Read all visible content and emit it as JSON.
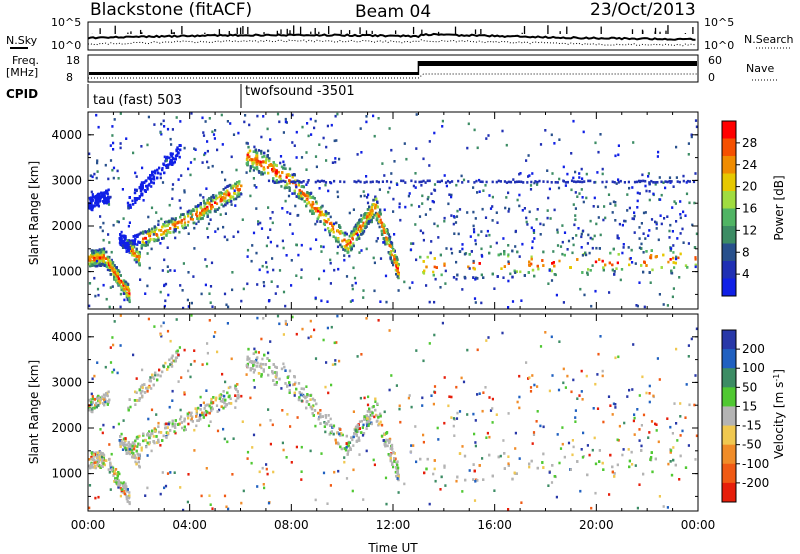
{
  "header": {
    "station": "Blackstone (fitACF)",
    "beam": "Beam 04",
    "date": "23/Oct/2013"
  },
  "status_panels": {
    "nsky_label": "N.Sky",
    "nsearch_label": "N.Search",
    "noise_ticks": [
      "10^5",
      "10^0"
    ],
    "freq_label": "Freq.",
    "freq_unit": "[MHz]",
    "freq_ticks": [
      "18",
      "8"
    ],
    "nave_label": "Nave",
    "nave_ticks": [
      "60",
      "0"
    ],
    "cpid_label": "CPID",
    "cpid_segments": [
      {
        "name": "tau (fast) 503",
        "start_hour": 0,
        "end_hour": 6
      },
      {
        "name": "twofsound -3501",
        "start_hour": 6,
        "end_hour": 24
      }
    ],
    "freq_step_hour": 13
  },
  "chart_data": [
    {
      "type": "heatmap",
      "name": "power",
      "ylabel": "Slant Range [km]",
      "ylim": [
        180,
        4500
      ],
      "yticks": [
        1000,
        2000,
        3000,
        4000
      ],
      "xlim": [
        0,
        24
      ],
      "colorbar": {
        "label": "Power [dB]",
        "ticks": [
          "28",
          "24",
          "20",
          "16",
          "12",
          "8",
          "4"
        ],
        "colors": [
          "#ff0000",
          "#f55000",
          "#f08c00",
          "#e6c800",
          "#a0dc40",
          "#50b464",
          "#3c8c64",
          "#28508c",
          "#2030b4",
          "#1020e6"
        ]
      }
    },
    {
      "type": "heatmap",
      "name": "velocity",
      "ylabel": "Slant Range [km]",
      "ylim": [
        180,
        4500
      ],
      "yticks": [
        1000,
        2000,
        3000,
        4000
      ],
      "xlim": [
        0,
        24
      ],
      "xticks": [
        "00:00",
        "04:00",
        "08:00",
        "12:00",
        "16:00",
        "20:00",
        "00:00"
      ],
      "xlabel": "Time UT",
      "colorbar": {
        "label_main": "Velocity [m s",
        "label_sup": "-1",
        "label_close": "]",
        "ticks": [
          "200",
          "100",
          "50",
          "15",
          "-15",
          "-50",
          "-100",
          "-200"
        ],
        "colors": [
          "#2838a8",
          "#2060c0",
          "#3c8c64",
          "#50c832",
          "#b4b4b4",
          "#f0c850",
          "#f08c28",
          "#f05a14",
          "#e61e0a"
        ]
      }
    }
  ]
}
